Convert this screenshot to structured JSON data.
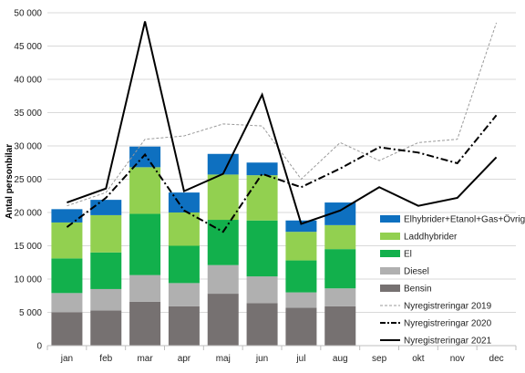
{
  "chart_data": {
    "type": "bar",
    "ylabel": "Antal personbilar",
    "ylim": [
      0,
      50000
    ],
    "yticks": [
      0,
      5000,
      10000,
      15000,
      20000,
      25000,
      30000,
      35000,
      40000,
      45000,
      50000
    ],
    "ytick_labels": [
      "0",
      "5 000",
      "10 000",
      "15 000",
      "20 000",
      "25 000",
      "30 000",
      "35 000",
      "40 000",
      "45 000",
      "50 000"
    ],
    "grid": true,
    "legend_position": "bottom-right",
    "categories": [
      "jan",
      "feb",
      "mar",
      "apr",
      "maj",
      "jun",
      "jul",
      "aug",
      "sep",
      "okt",
      "nov",
      "dec"
    ],
    "stacked_series": [
      {
        "name": "Bensin",
        "color": "#767171",
        "values": [
          5000,
          5300,
          6600,
          5900,
          7800,
          6400,
          5700,
          5900,
          null,
          null,
          null,
          null
        ]
      },
      {
        "name": "Diesel",
        "color": "#b0b0b0",
        "values": [
          2900,
          3200,
          4000,
          3500,
          4300,
          4000,
          2300,
          2700,
          null,
          null,
          null,
          null
        ]
      },
      {
        "name": "El",
        "color": "#12b04c",
        "values": [
          5200,
          5500,
          9200,
          5600,
          6800,
          8400,
          4800,
          5900,
          null,
          null,
          null,
          null
        ]
      },
      {
        "name": "Laddhybrider",
        "color": "#92d050",
        "values": [
          5400,
          5600,
          7000,
          5000,
          6800,
          6800,
          4300,
          3600,
          null,
          null,
          null,
          null
        ]
      },
      {
        "name": "Elhybrider+Etanol+Gas+Övriga",
        "color": "#0e70c0",
        "values": [
          2000,
          2300,
          3100,
          3000,
          3100,
          1900,
          1700,
          3400,
          null,
          null,
          null,
          null
        ]
      }
    ],
    "line_series": [
      {
        "name": "Nyregistreringar 2019",
        "color": "#9a9a9a",
        "style": "dashed",
        "values": [
          21000,
          23000,
          31000,
          31500,
          33300,
          33000,
          25000,
          30500,
          27800,
          30500,
          31000,
          48500
        ]
      },
      {
        "name": "Nyregistreringar 2020",
        "color": "#000000",
        "style": "dashdot",
        "values": [
          17800,
          22200,
          28700,
          20300,
          17100,
          25800,
          23800,
          26600,
          29800,
          29000,
          27400,
          34600
        ]
      },
      {
        "name": "Nyregistreringar 2021",
        "color": "#000000",
        "style": "solid",
        "values": [
          21500,
          23600,
          48700,
          23200,
          25800,
          37700,
          18300,
          20300,
          23800,
          21000,
          22200,
          28300
        ]
      }
    ]
  }
}
